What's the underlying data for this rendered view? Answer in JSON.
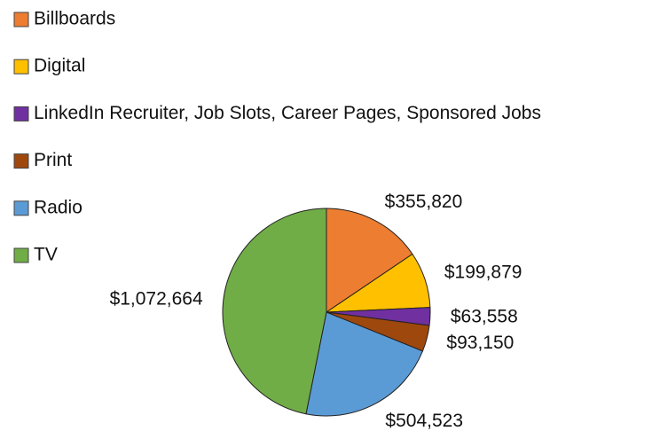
{
  "chart_data": {
    "type": "pie",
    "categories": [
      "Billboards",
      "Digital",
      "LinkedIn Recruiter, Job Slots, Career Pages, Sponsored Jobs",
      "Print",
      "Radio",
      "TV"
    ],
    "values": [
      355820,
      199879,
      63558,
      93150,
      504523,
      1072664
    ],
    "value_labels": [
      "$355,820",
      "$199,879",
      "$63,558",
      "$93,150",
      "$504,523",
      "$1,072,664"
    ],
    "colors": [
      "#ED7D31",
      "#FFC000",
      "#7030A0",
      "#9E480E",
      "#5B9BD5",
      "#70AD47"
    ],
    "legend": "top-left"
  }
}
